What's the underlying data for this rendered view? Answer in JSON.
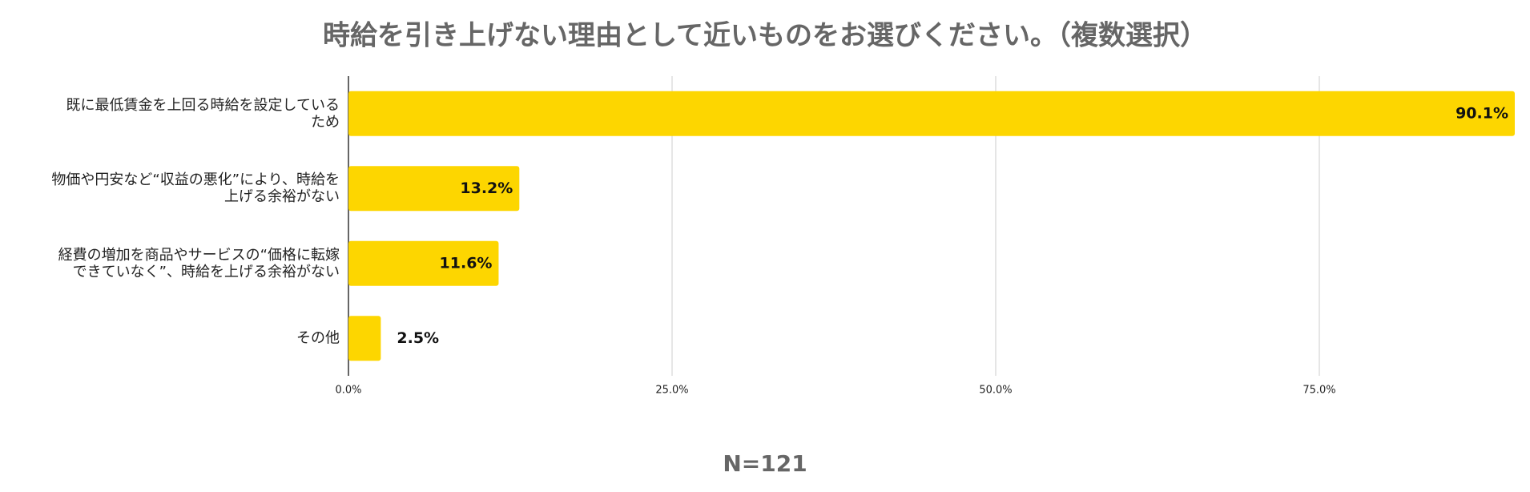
{
  "chart_data": {
    "type": "hbar",
    "title": "時給を引き上げない理由として近いものをお選びください。（複数選択）",
    "categories": [
      "既に最低賃金を上回る時給を設定している\nため",
      "物価や円安など“収益の悪化”により、時給を\n上げる余裕がない",
      "経費の増加を商品やサービスの“価格に転嫁\nできていなく”、時給を上げる余裕がない",
      "その他"
    ],
    "values": [
      90.1,
      13.2,
      11.6,
      2.5
    ],
    "value_labels": [
      "90.1%",
      "13.2%",
      "11.6%",
      "2.5%"
    ],
    "color": "#fdd600",
    "xlim": [
      0,
      90.1
    ],
    "xticks": [
      {
        "value": 0,
        "label": "0.0%"
      },
      {
        "value": 25,
        "label": "25.0%"
      },
      {
        "value": 50,
        "label": "50.0%"
      },
      {
        "value": 75,
        "label": "75.0%"
      }
    ],
    "grid": true,
    "footnote": "N=121"
  }
}
